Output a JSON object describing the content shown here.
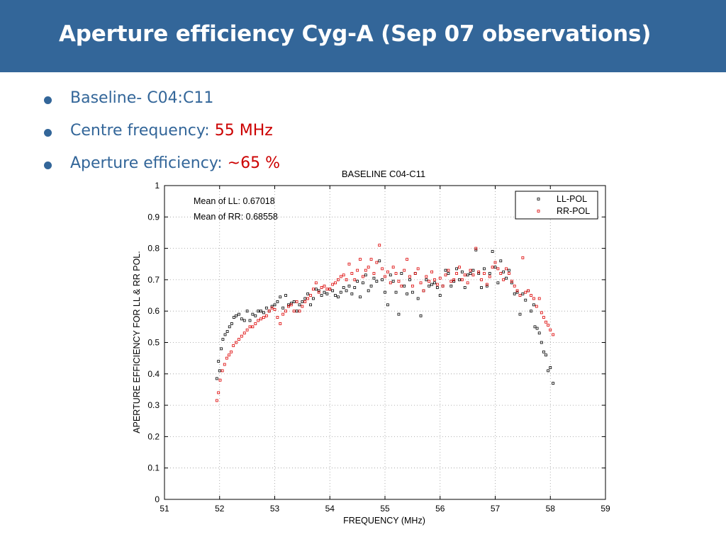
{
  "slide": {
    "title": "Aperture efficiency Cyg-A (Sep 07 observations)",
    "bullets": [
      {
        "label": "Baseline- C04:C11",
        "value": ""
      },
      {
        "label": "Centre frequency: ",
        "value": "55 MHz"
      },
      {
        "label": "Aperture efficiency: ",
        "value": "~65 %"
      }
    ]
  },
  "colors": {
    "header": "#336699",
    "text": "#336699",
    "highlight": "#cc0000",
    "ll": "#000000",
    "rr": "#dd0000"
  },
  "chart_data": {
    "type": "scatter",
    "title": "BASELINE C04-C11",
    "xlabel": "FREQUENCY (MHz)",
    "ylabel": "APERTURE EFFICIENCY FOR LL & RR POL.",
    "xlim": [
      51,
      59
    ],
    "ylim": [
      0,
      1
    ],
    "xticks": [
      51,
      52,
      53,
      54,
      55,
      56,
      57,
      58,
      59
    ],
    "yticks": [
      0,
      0.1,
      0.2,
      0.3,
      0.4,
      0.5,
      0.6,
      0.7,
      0.8,
      0.9,
      1
    ],
    "grid": true,
    "legend_position": "top-right",
    "annotations": [
      "Mean of LL: 0.67018",
      "Mean of RR: 0.68558"
    ],
    "series": [
      {
        "name": "LL-POL",
        "marker": "square",
        "points": [
          [
            51.95,
            0.385
          ],
          [
            51.98,
            0.44
          ],
          [
            52.0,
            0.41
          ],
          [
            52.03,
            0.48
          ],
          [
            52.06,
            0.51
          ],
          [
            52.1,
            0.525
          ],
          [
            52.14,
            0.535
          ],
          [
            52.18,
            0.55
          ],
          [
            52.22,
            0.56
          ],
          [
            52.26,
            0.58
          ],
          [
            52.3,
            0.585
          ],
          [
            52.35,
            0.59
          ],
          [
            52.4,
            0.575
          ],
          [
            52.45,
            0.57
          ],
          [
            52.5,
            0.6
          ],
          [
            52.55,
            0.57
          ],
          [
            52.6,
            0.59
          ],
          [
            52.65,
            0.585
          ],
          [
            52.7,
            0.6
          ],
          [
            52.75,
            0.6
          ],
          [
            52.8,
            0.595
          ],
          [
            52.85,
            0.61
          ],
          [
            52.9,
            0.6
          ],
          [
            52.95,
            0.615
          ],
          [
            53.0,
            0.62
          ],
          [
            53.05,
            0.63
          ],
          [
            53.1,
            0.645
          ],
          [
            53.15,
            0.61
          ],
          [
            53.2,
            0.65
          ],
          [
            53.25,
            0.62
          ],
          [
            53.3,
            0.625
          ],
          [
            53.35,
            0.63
          ],
          [
            53.4,
            0.6
          ],
          [
            53.45,
            0.62
          ],
          [
            53.5,
            0.63
          ],
          [
            53.55,
            0.64
          ],
          [
            53.6,
            0.655
          ],
          [
            53.65,
            0.62
          ],
          [
            53.7,
            0.64
          ],
          [
            53.75,
            0.67
          ],
          [
            53.8,
            0.665
          ],
          [
            53.85,
            0.65
          ],
          [
            53.9,
            0.66
          ],
          [
            53.95,
            0.655
          ],
          [
            54.0,
            0.67
          ],
          [
            54.05,
            0.665
          ],
          [
            54.1,
            0.65
          ],
          [
            54.15,
            0.645
          ],
          [
            54.2,
            0.66
          ],
          [
            54.25,
            0.675
          ],
          [
            54.3,
            0.665
          ],
          [
            54.35,
            0.68
          ],
          [
            54.4,
            0.655
          ],
          [
            54.45,
            0.675
          ],
          [
            54.5,
            0.695
          ],
          [
            54.55,
            0.645
          ],
          [
            54.6,
            0.69
          ],
          [
            54.65,
            0.715
          ],
          [
            54.7,
            0.665
          ],
          [
            54.75,
            0.68
          ],
          [
            54.8,
            0.705
          ],
          [
            54.85,
            0.695
          ],
          [
            54.9,
            0.76
          ],
          [
            54.95,
            0.7
          ],
          [
            55.0,
            0.66
          ],
          [
            55.05,
            0.62
          ],
          [
            55.1,
            0.715
          ],
          [
            55.15,
            0.695
          ],
          [
            55.2,
            0.66
          ],
          [
            55.25,
            0.59
          ],
          [
            55.3,
            0.72
          ],
          [
            55.35,
            0.68
          ],
          [
            55.4,
            0.655
          ],
          [
            55.45,
            0.7
          ],
          [
            55.5,
            0.66
          ],
          [
            55.55,
            0.72
          ],
          [
            55.6,
            0.64
          ],
          [
            55.65,
            0.585
          ],
          [
            55.7,
            0.665
          ],
          [
            55.75,
            0.7
          ],
          [
            55.8,
            0.68
          ],
          [
            55.85,
            0.685
          ],
          [
            55.9,
            0.69
          ],
          [
            55.95,
            0.675
          ],
          [
            56.0,
            0.65
          ],
          [
            56.05,
            0.68
          ],
          [
            56.1,
            0.73
          ],
          [
            56.15,
            0.72
          ],
          [
            56.2,
            0.68
          ],
          [
            56.25,
            0.695
          ],
          [
            56.3,
            0.735
          ],
          [
            56.35,
            0.7
          ],
          [
            56.4,
            0.725
          ],
          [
            56.45,
            0.675
          ],
          [
            56.5,
            0.715
          ],
          [
            56.55,
            0.72
          ],
          [
            56.6,
            0.73
          ],
          [
            56.65,
            0.795
          ],
          [
            56.7,
            0.72
          ],
          [
            56.75,
            0.675
          ],
          [
            56.8,
            0.735
          ],
          [
            56.85,
            0.68
          ],
          [
            56.9,
            0.72
          ],
          [
            56.95,
            0.79
          ],
          [
            57.0,
            0.74
          ],
          [
            57.05,
            0.69
          ],
          [
            57.1,
            0.76
          ],
          [
            57.15,
            0.725
          ],
          [
            57.2,
            0.705
          ],
          [
            57.25,
            0.73
          ],
          [
            57.3,
            0.69
          ],
          [
            57.35,
            0.655
          ],
          [
            57.4,
            0.66
          ],
          [
            57.45,
            0.59
          ],
          [
            57.5,
            0.655
          ],
          [
            57.55,
            0.635
          ],
          [
            57.6,
            0.665
          ],
          [
            57.65,
            0.6
          ],
          [
            57.7,
            0.62
          ],
          [
            57.72,
            0.55
          ],
          [
            57.76,
            0.545
          ],
          [
            57.8,
            0.53
          ],
          [
            57.84,
            0.5
          ],
          [
            57.88,
            0.47
          ],
          [
            57.92,
            0.46
          ],
          [
            57.96,
            0.41
          ],
          [
            58.0,
            0.42
          ],
          [
            58.05,
            0.37
          ]
        ]
      },
      {
        "name": "RR-POL",
        "marker": "square",
        "points": [
          [
            51.95,
            0.315
          ],
          [
            51.98,
            0.34
          ],
          [
            52.01,
            0.38
          ],
          [
            52.05,
            0.41
          ],
          [
            52.09,
            0.43
          ],
          [
            52.13,
            0.45
          ],
          [
            52.17,
            0.46
          ],
          [
            52.21,
            0.47
          ],
          [
            52.25,
            0.49
          ],
          [
            52.3,
            0.5
          ],
          [
            52.35,
            0.51
          ],
          [
            52.4,
            0.52
          ],
          [
            52.45,
            0.53
          ],
          [
            52.5,
            0.54
          ],
          [
            52.55,
            0.55
          ],
          [
            52.6,
            0.55
          ],
          [
            52.65,
            0.56
          ],
          [
            52.7,
            0.57
          ],
          [
            52.75,
            0.575
          ],
          [
            52.8,
            0.58
          ],
          [
            52.85,
            0.585
          ],
          [
            52.9,
            0.6
          ],
          [
            52.95,
            0.61
          ],
          [
            53.0,
            0.605
          ],
          [
            53.05,
            0.58
          ],
          [
            53.1,
            0.56
          ],
          [
            53.15,
            0.59
          ],
          [
            53.2,
            0.6
          ],
          [
            53.25,
            0.615
          ],
          [
            53.3,
            0.62
          ],
          [
            53.35,
            0.6
          ],
          [
            53.4,
            0.63
          ],
          [
            53.45,
            0.6
          ],
          [
            53.5,
            0.615
          ],
          [
            53.55,
            0.63
          ],
          [
            53.6,
            0.64
          ],
          [
            53.65,
            0.65
          ],
          [
            53.7,
            0.67
          ],
          [
            53.75,
            0.69
          ],
          [
            53.8,
            0.66
          ],
          [
            53.85,
            0.675
          ],
          [
            53.9,
            0.68
          ],
          [
            53.95,
            0.67
          ],
          [
            54.0,
            0.67
          ],
          [
            54.05,
            0.685
          ],
          [
            54.1,
            0.69
          ],
          [
            54.15,
            0.7
          ],
          [
            54.2,
            0.71
          ],
          [
            54.25,
            0.715
          ],
          [
            54.3,
            0.7
          ],
          [
            54.35,
            0.75
          ],
          [
            54.4,
            0.72
          ],
          [
            54.45,
            0.7
          ],
          [
            54.5,
            0.73
          ],
          [
            54.55,
            0.765
          ],
          [
            54.6,
            0.71
          ],
          [
            54.65,
            0.73
          ],
          [
            54.7,
            0.74
          ],
          [
            54.75,
            0.765
          ],
          [
            54.8,
            0.72
          ],
          [
            54.85,
            0.755
          ],
          [
            54.9,
            0.81
          ],
          [
            54.95,
            0.735
          ],
          [
            55.0,
            0.71
          ],
          [
            55.05,
            0.725
          ],
          [
            55.1,
            0.69
          ],
          [
            55.15,
            0.74
          ],
          [
            55.2,
            0.72
          ],
          [
            55.25,
            0.695
          ],
          [
            55.3,
            0.68
          ],
          [
            55.35,
            0.73
          ],
          [
            55.4,
            0.765
          ],
          [
            55.45,
            0.71
          ],
          [
            55.5,
            0.68
          ],
          [
            55.55,
            0.72
          ],
          [
            55.6,
            0.735
          ],
          [
            55.65,
            0.69
          ],
          [
            55.7,
            0.665
          ],
          [
            55.75,
            0.71
          ],
          [
            55.8,
            0.695
          ],
          [
            55.85,
            0.725
          ],
          [
            55.9,
            0.7
          ],
          [
            55.95,
            0.685
          ],
          [
            56.0,
            0.705
          ],
          [
            56.05,
            0.68
          ],
          [
            56.1,
            0.715
          ],
          [
            56.15,
            0.73
          ],
          [
            56.2,
            0.695
          ],
          [
            56.25,
            0.7
          ],
          [
            56.3,
            0.72
          ],
          [
            56.35,
            0.74
          ],
          [
            56.4,
            0.7
          ],
          [
            56.45,
            0.715
          ],
          [
            56.5,
            0.69
          ],
          [
            56.55,
            0.73
          ],
          [
            56.6,
            0.715
          ],
          [
            56.65,
            0.8
          ],
          [
            56.7,
            0.725
          ],
          [
            56.75,
            0.7
          ],
          [
            56.8,
            0.72
          ],
          [
            56.85,
            0.685
          ],
          [
            56.9,
            0.71
          ],
          [
            56.95,
            0.74
          ],
          [
            57.0,
            0.755
          ],
          [
            57.05,
            0.735
          ],
          [
            57.1,
            0.72
          ],
          [
            57.15,
            0.7
          ],
          [
            57.2,
            0.735
          ],
          [
            57.25,
            0.72
          ],
          [
            57.3,
            0.695
          ],
          [
            57.35,
            0.68
          ],
          [
            57.4,
            0.665
          ],
          [
            57.45,
            0.65
          ],
          [
            57.5,
            0.77
          ],
          [
            57.55,
            0.66
          ],
          [
            57.6,
            0.665
          ],
          [
            57.65,
            0.65
          ],
          [
            57.7,
            0.64
          ],
          [
            57.75,
            0.615
          ],
          [
            57.8,
            0.64
          ],
          [
            57.84,
            0.595
          ],
          [
            57.88,
            0.58
          ],
          [
            57.92,
            0.565
          ],
          [
            57.96,
            0.555
          ],
          [
            58.0,
            0.54
          ],
          [
            58.05,
            0.525
          ]
        ]
      }
    ]
  }
}
